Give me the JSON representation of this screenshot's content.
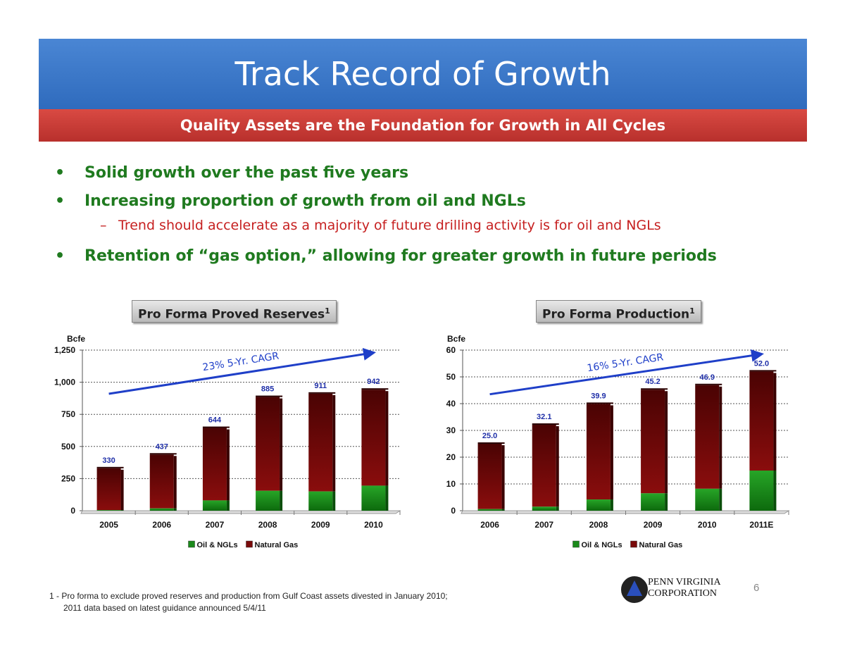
{
  "header": {
    "title": "Track Record of Growth",
    "subtitle": "Quality Assets are the Foundation for Growth in All Cycles"
  },
  "bullets": [
    {
      "text": "Solid growth over the past five years"
    },
    {
      "text": "Increasing proportion of growth from oil and NGLs"
    },
    {
      "text": "Trend should accelerate as a majority of future drilling activity is for oil and NGLs",
      "sub": true
    },
    {
      "text": "Retention of “gas option,” allowing for greater growth in future periods"
    }
  ],
  "colors": {
    "oil": "#1a8a1a",
    "gas": "#7a0a0a",
    "labels": "#1f2fa8",
    "trend": "#1f3fc8"
  },
  "chart_data": [
    {
      "type": "bar",
      "stacked": true,
      "title": "Pro Forma Proved Reserves",
      "title_sup": "1",
      "ylabel": "Bcfe",
      "ylim": [
        0,
        1250
      ],
      "yticks": [
        0,
        250,
        500,
        750,
        1000,
        1250
      ],
      "ytick_labels": [
        "0",
        "250",
        "500",
        "750",
        "1,000",
        "1,250"
      ],
      "categories": [
        "2005",
        "2006",
        "2007",
        "2008",
        "2009",
        "2010"
      ],
      "series": [
        {
          "name": "Oil & NGLs",
          "values": [
            5,
            18,
            80,
            155,
            150,
            195
          ]
        },
        {
          "name": "Natural Gas",
          "values": [
            325,
            419,
            564,
            730,
            761,
            747
          ]
        }
      ],
      "totals": [
        330,
        437,
        644,
        885,
        911,
        942
      ],
      "total_labels": [
        "330",
        "437",
        "644",
        "885",
        "911",
        "942"
      ],
      "trend_label": "23% 5-Yr. CAGR",
      "trend_from": 910,
      "trend_to": 1230,
      "grid": true,
      "legend": "bottom"
    },
    {
      "type": "bar",
      "stacked": true,
      "title": "Pro Forma Production",
      "title_sup": "1",
      "ylabel": "Bcfe",
      "ylim": [
        0,
        60
      ],
      "yticks": [
        0,
        10,
        20,
        30,
        40,
        50,
        60
      ],
      "ytick_labels": [
        "0",
        "10",
        "20",
        "30",
        "40",
        "50",
        "60"
      ],
      "categories": [
        "2006",
        "2007",
        "2008",
        "2009",
        "2010",
        "2011E"
      ],
      "series": [
        {
          "name": "Oil & NGLs",
          "values": [
            0.6,
            1.5,
            4.2,
            6.5,
            8.2,
            15.0
          ]
        },
        {
          "name": "Natural Gas",
          "values": [
            24.4,
            30.6,
            35.7,
            38.7,
            38.7,
            37.0
          ]
        }
      ],
      "totals": [
        25.0,
        32.1,
        39.9,
        45.2,
        46.9,
        52.0
      ],
      "total_labels": [
        "25.0",
        "32.1",
        "39.9",
        "45.2",
        "46.9",
        "52.0"
      ],
      "trend_label": "16% 5-Yr. CAGR",
      "trend_from": 43.5,
      "trend_to": 58.5,
      "grid": true,
      "legend": "bottom"
    }
  ],
  "footnote": {
    "line1": "1 - Pro forma to exclude proved reserves and production from Gulf Coast assets divested in January 2010;",
    "line2": "2011 data based on latest guidance announced 5/4/11"
  },
  "logo": {
    "line1": "PENN VIRGINIA",
    "line2": "CORPORATION"
  },
  "page_number": "6"
}
